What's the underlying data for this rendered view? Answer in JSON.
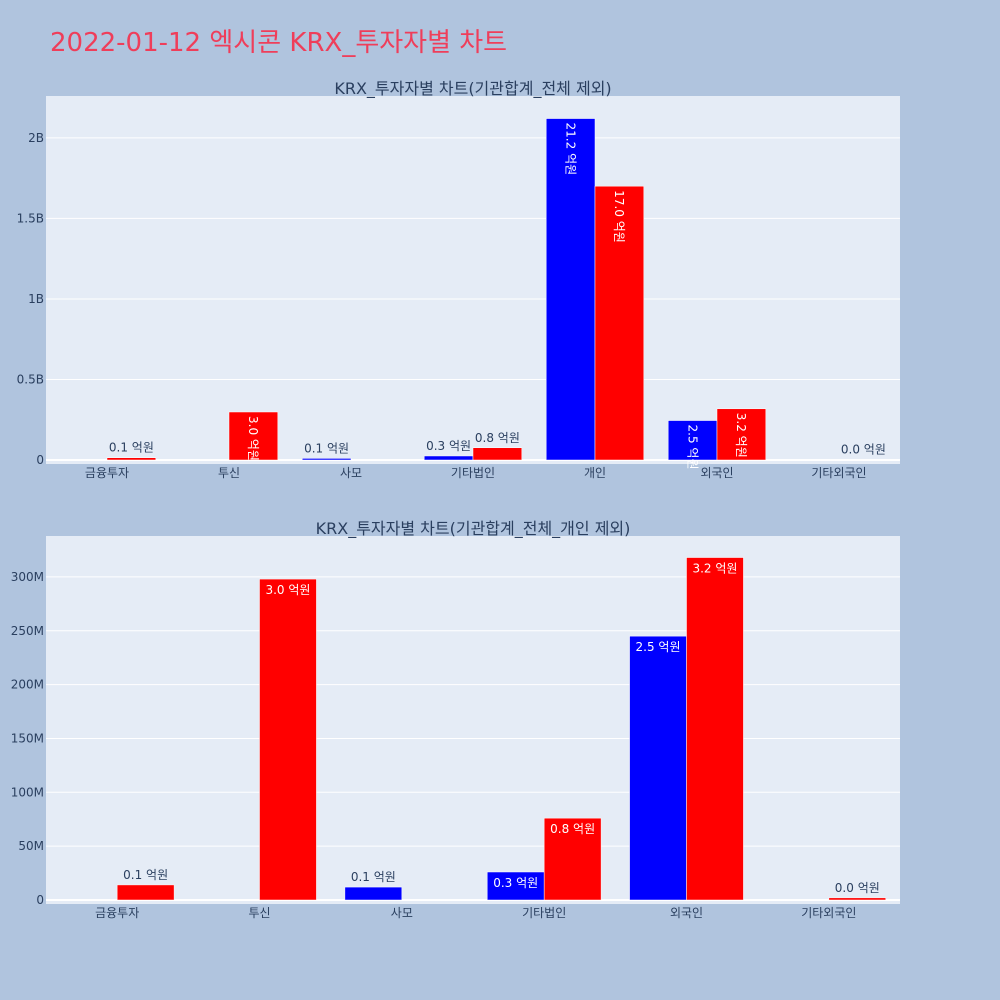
{
  "page_title": "2022-01-12 엑시콘 KRX_투자자별 차트",
  "colors": {
    "background": "#b0c4de",
    "plot_bg": "#e5ecf6",
    "title": "#ef3e5a",
    "buy": "#0000ff",
    "sell": "#ff0000"
  },
  "chart_data": [
    {
      "type": "bar",
      "title": "KRX_투자자별 차트(기관합계_전체 제외)",
      "categories": [
        "금융투자",
        "투신",
        "사모",
        "기타법인",
        "개인",
        "외국인",
        "기타외국인"
      ],
      "ylim": [
        0,
        2260000000
      ],
      "yticks": [
        0,
        500000000,
        1000000000,
        1500000000,
        2000000000
      ],
      "ytick_labels": [
        "0",
        "0.5B",
        "1B",
        "1.5B",
        "2B"
      ],
      "grid": true,
      "series": [
        {
          "color": "#0000ff",
          "values": [
            0,
            0,
            10000000,
            25000000,
            2120000000,
            245000000,
            0
          ],
          "labels": [
            "",
            "",
            "0.1 억원",
            "0.3 억원",
            "21.2 억원",
            "2.5 억원",
            ""
          ]
        },
        {
          "color": "#ff0000",
          "values": [
            14000000,
            298000000,
            0,
            76000000,
            1700000000,
            318000000,
            2000000
          ],
          "labels": [
            "0.1 억원",
            "3.0 억원",
            "",
            "0.8 억원",
            "17.0 억원",
            "3.2 억원",
            "0.0 억원"
          ]
        }
      ]
    },
    {
      "type": "bar",
      "title": "KRX_투자자별 차트(기관합계_전체_개인 제외)",
      "categories": [
        "금융투자",
        "투신",
        "사모",
        "기타법인",
        "외국인",
        "기타외국인"
      ],
      "ylim": [
        0,
        338000000
      ],
      "yticks": [
        0,
        50000000,
        100000000,
        150000000,
        200000000,
        250000000,
        300000000
      ],
      "ytick_labels": [
        "0",
        "50M",
        "100M",
        "150M",
        "200M",
        "250M",
        "300M"
      ],
      "grid": true,
      "series": [
        {
          "color": "#0000ff",
          "values": [
            0,
            0,
            12000000,
            26000000,
            245000000,
            0
          ],
          "labels": [
            "",
            "",
            "0.1 억원",
            "0.3 억원",
            "2.5 억원",
            ""
          ]
        },
        {
          "color": "#ff0000",
          "values": [
            14000000,
            298000000,
            0,
            76000000,
            318000000,
            2000000
          ],
          "labels": [
            "0.1 억원",
            "3.0 억원",
            "",
            "0.8 억원",
            "3.2 억원",
            "0.0 억원"
          ]
        }
      ]
    }
  ]
}
